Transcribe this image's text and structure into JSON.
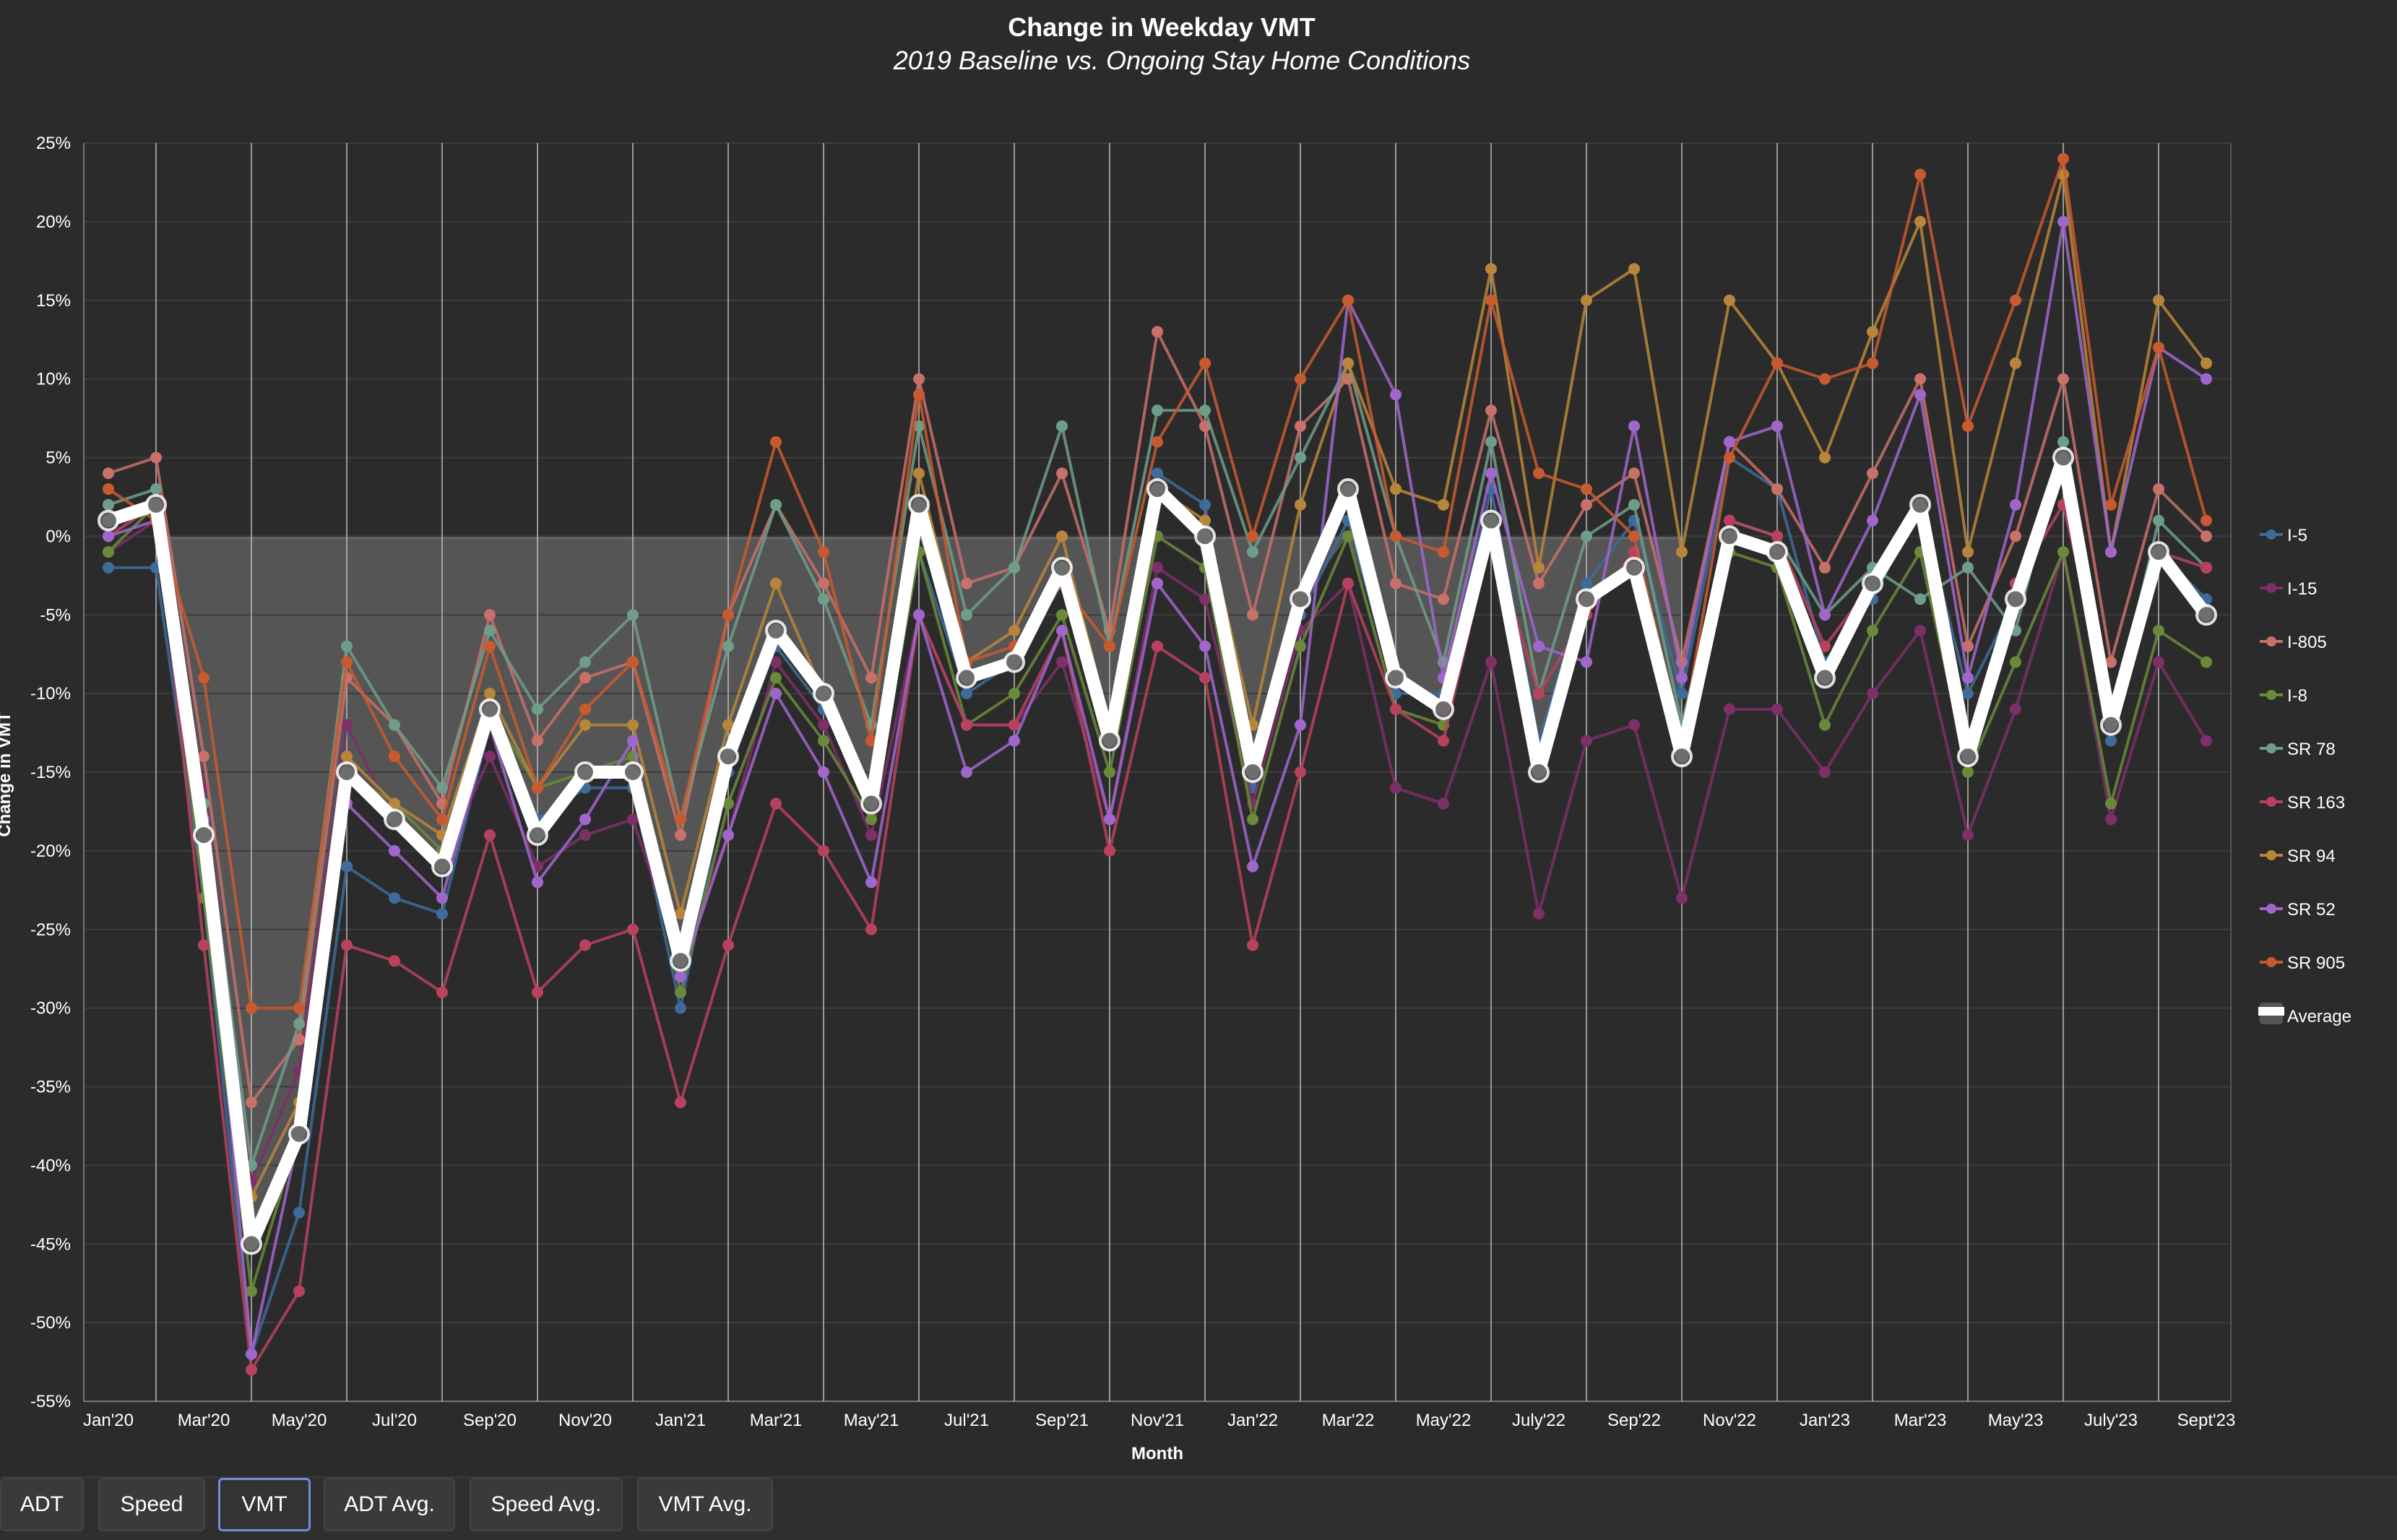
{
  "chart_data": {
    "type": "line",
    "title": "Change in Weekday VMT",
    "subtitle": "2019 Baseline vs. Ongoing Stay Home Conditions",
    "xlabel": "Month",
    "ylabel": "Change in VMT",
    "ylim": [
      -55,
      25
    ],
    "yticks": [
      "25%",
      "20%",
      "15%",
      "10%",
      "5%",
      "0%",
      "-5%",
      "-10%",
      "-15%",
      "-20%",
      "-25%",
      "-30%",
      "-35%",
      "-40%",
      "-45%",
      "-50%",
      "-55%"
    ],
    "x_tick_labels": [
      "Jan'20",
      "Mar'20",
      "May'20",
      "Jul'20",
      "Sep'20",
      "Nov'20",
      "Jan'21",
      "Mar'21",
      "May'21",
      "Jul'21",
      "Sep'21",
      "Nov'21",
      "Jan'22",
      "Mar'22",
      "May'22",
      "July'22",
      "Sep'22",
      "Nov'22",
      "Jan'23",
      "Mar'23",
      "May'23",
      "July'23",
      "Sept'23"
    ],
    "categories": [
      "Jan'20",
      "Feb'20",
      "Mar'20",
      "Apr'20",
      "May'20",
      "Jun'20",
      "Jul'20",
      "Aug'20",
      "Sep'20",
      "Oct'20",
      "Nov'20",
      "Dec'20",
      "Jan'21",
      "Feb'21",
      "Mar'21",
      "Apr'21",
      "May'21",
      "Jun'21",
      "Jul'21",
      "Aug'21",
      "Sep'21",
      "Oct'21",
      "Nov'21",
      "Dec'21",
      "Jan'22",
      "Feb'22",
      "Mar'22",
      "Apr'22",
      "May'22",
      "Jun'22",
      "July'22",
      "Aug'22",
      "Sep'22",
      "Oct'22",
      "Nov'22",
      "Dec'22",
      "Jan'23",
      "Feb'23",
      "Mar'23",
      "Apr'23",
      "May'23",
      "Jun'23",
      "July'23",
      "Aug'23",
      "Sept'23"
    ],
    "baseline_fill": {
      "from": "Feb'20",
      "to": "Oct'22",
      "color": "#5a5a5a"
    },
    "grid": true,
    "legend_position": "right",
    "series": [
      {
        "name": "I-5",
        "color": "#3e6b99",
        "values": [
          -2,
          -2,
          -23,
          -52,
          -43,
          -21,
          -23,
          -24,
          -12,
          -18,
          -16,
          -16,
          -30,
          -15,
          -7,
          -11,
          -17,
          -1,
          -10,
          -8,
          -3,
          -13,
          4,
          2,
          -16,
          -5,
          1,
          -10,
          -10,
          3,
          -13,
          -3,
          1,
          -10,
          5,
          3,
          -8,
          -4,
          2,
          -10,
          -4,
          5,
          -13,
          -1,
          -4
        ]
      },
      {
        "name": "I-15",
        "color": "#7d2f68",
        "values": [
          -1,
          1,
          -16,
          -41,
          -34,
          -12,
          -18,
          -21,
          -14,
          -21,
          -19,
          -18,
          -27,
          -19,
          -8,
          -12,
          -19,
          -5,
          -12,
          -12,
          -8,
          -18,
          -2,
          -4,
          -17,
          -6,
          -3,
          -16,
          -17,
          -8,
          -24,
          -13,
          -12,
          -23,
          -11,
          -11,
          -15,
          -10,
          -6,
          -19,
          -11,
          -1,
          -18,
          -8,
          -13
        ]
      },
      {
        "name": "I-805",
        "color": "#c8706a",
        "values": [
          4,
          5,
          -14,
          -36,
          -32,
          -9,
          -12,
          -17,
          -5,
          -13,
          -9,
          -8,
          -19,
          -5,
          2,
          -3,
          -9,
          10,
          -3,
          -2,
          4,
          -6,
          13,
          7,
          -5,
          7,
          10,
          -3,
          -4,
          8,
          -3,
          2,
          4,
          -8,
          6,
          3,
          -2,
          4,
          10,
          -7,
          0,
          10,
          -8,
          3,
          0
        ]
      },
      {
        "name": "I-8",
        "color": "#6a8a3a",
        "values": [
          -1,
          2,
          -23,
          -48,
          -38,
          -15,
          -17,
          -20,
          -11,
          -16,
          -15,
          -14,
          -29,
          -17,
          -9,
          -13,
          -18,
          -1,
          -12,
          -10,
          -5,
          -15,
          0,
          -2,
          -18,
          -7,
          0,
          -11,
          -12,
          0,
          -14,
          -4,
          -2,
          -13,
          -1,
          -2,
          -12,
          -6,
          -1,
          -15,
          -8,
          -1,
          -17,
          -6,
          -8
        ]
      },
      {
        "name": "SR 78",
        "color": "#6e9e8a",
        "values": [
          2,
          3,
          -17,
          -40,
          -31,
          -7,
          -12,
          -16,
          -6,
          -11,
          -8,
          -5,
          -18,
          -7,
          2,
          -4,
          -12,
          7,
          -5,
          -2,
          7,
          -7,
          8,
          8,
          -1,
          5,
          11,
          0,
          -8,
          6,
          -10,
          0,
          2,
          -12,
          1,
          0,
          -5,
          -2,
          -4,
          -2,
          -6,
          6,
          -12,
          1,
          -2
        ]
      },
      {
        "name": "SR 163",
        "color": "#b8425e",
        "values": [
          0,
          2,
          -26,
          -53,
          -48,
          -26,
          -27,
          -29,
          -19,
          -29,
          -26,
          -25,
          -36,
          -26,
          -17,
          -20,
          -25,
          -5,
          -12,
          -12,
          -6,
          -20,
          -7,
          -9,
          -26,
          -15,
          -3,
          -11,
          -13,
          0,
          -10,
          -5,
          -1,
          -13,
          1,
          0,
          -7,
          -3,
          2,
          -13,
          -3,
          2,
          -11,
          -1,
          -2
        ]
      },
      {
        "name": "SR 94",
        "color": "#b8863a",
        "values": [
          1,
          2,
          -20,
          -42,
          -36,
          -14,
          -17,
          -19,
          -10,
          -16,
          -12,
          -12,
          -24,
          -12,
          -3,
          -10,
          -16,
          4,
          -8,
          -6,
          0,
          -12,
          3,
          1,
          -12,
          2,
          11,
          3,
          2,
          17,
          -2,
          15,
          17,
          -1,
          15,
          11,
          5,
          13,
          20,
          -1,
          11,
          23,
          -1,
          15,
          11
        ]
      },
      {
        "name": "SR 52",
        "color": "#a066cc",
        "values": [
          0,
          1,
          -18,
          -52,
          -38,
          -17,
          -20,
          -23,
          -12,
          -22,
          -18,
          -13,
          -28,
          -19,
          -10,
          -15,
          -22,
          -5,
          -15,
          -13,
          -6,
          -18,
          -3,
          -7,
          -21,
          -12,
          15,
          9,
          -9,
          4,
          -7,
          -8,
          7,
          -9,
          6,
          7,
          -5,
          1,
          9,
          -9,
          2,
          20,
          -1,
          12,
          10
        ]
      },
      {
        "name": "SR 905",
        "color": "#c85a30",
        "values": [
          3,
          1,
          -9,
          -30,
          -30,
          -8,
          -14,
          -18,
          -7,
          -16,
          -11,
          -8,
          -18,
          -5,
          6,
          -1,
          -13,
          9,
          -8,
          -7,
          -3,
          -7,
          6,
          11,
          0,
          10,
          15,
          0,
          -1,
          15,
          4,
          3,
          0,
          -13,
          5,
          11,
          10,
          11,
          23,
          7,
          15,
          24,
          2,
          12,
          1
        ]
      },
      {
        "name": "Average",
        "color": "#ffffff",
        "is_average": true,
        "values": [
          1,
          2,
          -19,
          -45,
          -38,
          -15,
          -18,
          -21,
          -11,
          -19,
          -15,
          -15,
          -27,
          -14,
          -6,
          -10,
          -17,
          2,
          -9,
          -8,
          -2,
          -13,
          3,
          0,
          -15,
          -4,
          3,
          -9,
          -11,
          1,
          -15,
          -4,
          -2,
          -14,
          0,
          -1,
          -9,
          -3,
          2,
          -14,
          -4,
          5,
          -12,
          -1,
          -5
        ]
      }
    ]
  },
  "tabs": [
    {
      "label": "ADT",
      "active": false
    },
    {
      "label": "Speed",
      "active": false
    },
    {
      "label": "VMT",
      "active": true
    },
    {
      "label": "ADT Avg.",
      "active": false
    },
    {
      "label": "Speed Avg.",
      "active": false
    },
    {
      "label": "VMT Avg.",
      "active": false
    }
  ]
}
